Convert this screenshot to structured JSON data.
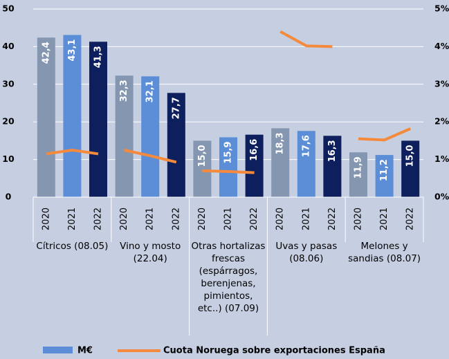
{
  "chart_data": {
    "type": "bar",
    "categories": [
      "2020",
      "2021",
      "2022",
      "2020",
      "2021",
      "2022",
      "2020",
      "2021",
      "2022",
      "2020",
      "2021",
      "2022",
      "2020",
      "2021",
      "2022"
    ],
    "groups": [
      "Cítricos (08.05)",
      "Vino y mosto (22.04)",
      "Otras hortalizas frescas (espárragos, berenjenas, pimientos, etc..) (07.09)",
      "Uvas y pasas (08.06)",
      "Melones y sandias (08.07)"
    ],
    "series": [
      {
        "name": "M€",
        "color": "#5b8ed6",
        "colors": [
          "#8496b0",
          "#5b8ed6",
          "#0d1f5c"
        ],
        "values": [
          42.4,
          43.1,
          41.3,
          32.3,
          32.1,
          27.7,
          15.0,
          15.9,
          16.6,
          18.3,
          17.6,
          16.3,
          11.9,
          11.2,
          15.0
        ],
        "value_labels": [
          "42,4",
          "43,1",
          "41,3",
          "32,3",
          "32,1",
          "27,7",
          "15,0",
          "15,9",
          "16,6",
          "18,3",
          "17,6",
          "16,3",
          "11,9",
          "11,2",
          "15,0"
        ]
      },
      {
        "name": "Cuota Noruega sobre exportaciones España",
        "color": "#f58a3c",
        "axis": "y2",
        "type": "line",
        "values": [
          1.15,
          1.25,
          1.15,
          1.25,
          1.1,
          0.93,
          0.7,
          0.68,
          0.65,
          4.4,
          4.02,
          4.0,
          1.55,
          1.52,
          1.82
        ]
      }
    ],
    "ylim": [
      0,
      50
    ],
    "yticks": [
      0,
      10,
      20,
      30,
      40,
      50
    ],
    "y2lim": [
      0,
      5
    ],
    "y2ticks": [
      {
        "value": 0,
        "label": "0%"
      },
      {
        "value": 1,
        "label": "1%"
      },
      {
        "value": 2,
        "label": "2%"
      },
      {
        "value": 3,
        "label": "3%"
      },
      {
        "value": 4,
        "label": "4%"
      },
      {
        "value": 5,
        "label": "5%"
      }
    ],
    "grid": true
  }
}
